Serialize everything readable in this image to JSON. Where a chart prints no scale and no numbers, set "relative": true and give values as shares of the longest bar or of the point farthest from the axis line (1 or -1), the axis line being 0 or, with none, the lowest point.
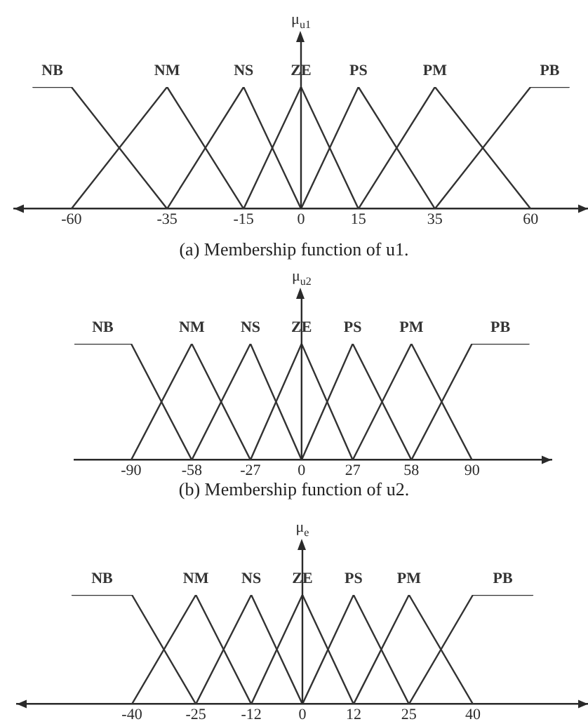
{
  "chart_data": [
    {
      "type": "line",
      "ylabel": "μ$_{u1}$",
      "annotations": [
        "(a) Membership function of u1."
      ],
      "xlim": [
        -75,
        75
      ],
      "xticks": [
        -60,
        -35,
        -15,
        0,
        15,
        35,
        60
      ],
      "relative": true,
      "tick_labels": "x",
      "line_style": "solid",
      "series": [
        {
          "name": "NB",
          "color": "#333333",
          "x": [
            -70,
            -60,
            -35
          ],
          "values": [
            1,
            1,
            0
          ]
        },
        {
          "name": "NM",
          "color": "#333333",
          "x": [
            -60,
            -35,
            -15
          ],
          "values": [
            0,
            1,
            0
          ]
        },
        {
          "name": "NS",
          "color": "#333333",
          "x": [
            -35,
            -15,
            0
          ],
          "values": [
            0,
            1,
            0
          ]
        },
        {
          "name": "ZE",
          "color": "#333333",
          "x": [
            -15,
            0,
            15
          ],
          "values": [
            0,
            1,
            0
          ]
        },
        {
          "name": "PS",
          "color": "#333333",
          "x": [
            0,
            15,
            35
          ],
          "values": [
            0,
            1,
            0
          ]
        },
        {
          "name": "PM",
          "color": "#333333",
          "x": [
            15,
            35,
            60
          ],
          "values": [
            0,
            1,
            0
          ]
        },
        {
          "name": "PB",
          "color": "#333333",
          "x": [
            35,
            60,
            70
          ],
          "values": [
            0,
            1,
            1
          ]
        }
      ]
    },
    {
      "type": "line",
      "ylabel": "μ$_{u2}$",
      "annotations": [
        "(b) Membership function of u2."
      ],
      "xlim": [
        -120,
        132
      ],
      "xticks": [
        -90,
        -58,
        -27,
        0,
        27,
        58,
        90
      ],
      "relative": true,
      "tick_labels": "x",
      "line_style": "solid",
      "series": [
        {
          "name": "NB",
          "color": "#333333",
          "x": [
            -120,
            -90,
            -58
          ],
          "values": [
            1,
            1,
            0
          ]
        },
        {
          "name": "NM",
          "color": "#333333",
          "x": [
            -90,
            -58,
            -27
          ],
          "values": [
            0,
            1,
            0
          ]
        },
        {
          "name": "NS",
          "color": "#333333",
          "x": [
            -58,
            -27,
            0
          ],
          "values": [
            0,
            1,
            0
          ]
        },
        {
          "name": "ZE",
          "color": "#333333",
          "x": [
            -27,
            0,
            27
          ],
          "values": [
            0,
            1,
            0
          ]
        },
        {
          "name": "PS",
          "color": "#333333",
          "x": [
            0,
            27,
            58
          ],
          "values": [
            0,
            1,
            0
          ]
        },
        {
          "name": "PM",
          "color": "#333333",
          "x": [
            27,
            58,
            90
          ],
          "values": [
            0,
            1,
            0
          ]
        },
        {
          "name": "PB",
          "color": "#333333",
          "x": [
            58,
            90,
            120
          ],
          "values": [
            0,
            1,
            1
          ]
        }
      ]
    },
    {
      "type": "line",
      "ylabel": "μ$_{e}$",
      "xlim": [
        -67,
        67
      ],
      "xticks": [
        -40,
        -25,
        -12,
        0,
        12,
        25,
        40
      ],
      "relative": true,
      "tick_labels": "x",
      "line_style": "solid",
      "series": [
        {
          "name": "NB",
          "color": "#333333",
          "x": [
            -54,
            -40,
            -25
          ],
          "values": [
            1,
            1,
            0
          ]
        },
        {
          "name": "NM",
          "color": "#333333",
          "x": [
            -40,
            -25,
            -12
          ],
          "values": [
            0,
            1,
            0
          ]
        },
        {
          "name": "NS",
          "color": "#333333",
          "x": [
            -25,
            -12,
            0
          ],
          "values": [
            0,
            1,
            0
          ]
        },
        {
          "name": "ZE",
          "color": "#333333",
          "x": [
            -12,
            0,
            12
          ],
          "values": [
            0,
            1,
            0
          ]
        },
        {
          "name": "PS",
          "color": "#333333",
          "x": [
            0,
            12,
            25
          ],
          "values": [
            0,
            1,
            0
          ]
        },
        {
          "name": "PM",
          "color": "#333333",
          "x": [
            12,
            25,
            40
          ],
          "values": [
            0,
            1,
            0
          ]
        },
        {
          "name": "PB",
          "color": "#333333",
          "x": [
            25,
            40,
            54
          ],
          "values": [
            0,
            1,
            1
          ]
        }
      ]
    }
  ]
}
